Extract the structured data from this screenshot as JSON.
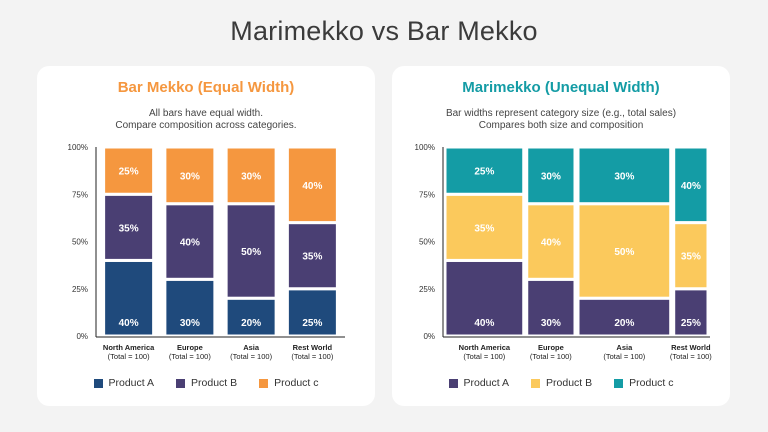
{
  "page": {
    "title": "Marimekko vs Bar Mekko"
  },
  "charts": {
    "left": {
      "heading": "Bar Mekko (Equal Width)",
      "heading_color": "#f5973f",
      "subtitle_line1": "All bars have equal width.",
      "subtitle_line2": "Compare composition across categories.",
      "legend": [
        "Product A",
        "Product B",
        "Product c"
      ]
    },
    "right": {
      "heading": "Marimekko (Unequal Width)",
      "heading_color": "#149ca5",
      "subtitle_line1": "Bar widths represent category size (e.g., total sales)",
      "subtitle_line2": "Compares both size and composition",
      "legend": [
        "Product A",
        "Product B",
        "Product c"
      ]
    }
  },
  "chart_data": [
    {
      "type": "bar",
      "stacked": true,
      "title": "Bar Mekko (Equal Width)",
      "categories": [
        "North America",
        "Europe",
        "Asia",
        "Rest World"
      ],
      "category_notes": [
        "(Total = 100)",
        "(Total = 100)",
        "(Total = 100)",
        "(Total = 100)"
      ],
      "yticks": [
        "0%",
        "25%",
        "50%",
        "75%",
        "100%"
      ],
      "ylim": [
        0,
        100
      ],
      "series": [
        {
          "name": "Product A",
          "color": "#1f4a7c",
          "values": [
            40,
            30,
            20,
            25
          ]
        },
        {
          "name": "Product B",
          "color": "#4a3f73",
          "values": [
            35,
            40,
            50,
            35
          ]
        },
        {
          "name": "Product c",
          "color": "#f5973f",
          "values": [
            25,
            30,
            30,
            40
          ]
        }
      ],
      "data_labels": [
        [
          "40%",
          "30%",
          "20%",
          "25%"
        ],
        [
          "35%",
          "40%",
          "50%",
          "35%"
        ],
        [
          "25%",
          "30%",
          "30%",
          "40%"
        ]
      ],
      "legend_position": "bottom",
      "grid": false
    },
    {
      "type": "marimekko",
      "title": "Marimekko (Unequal Width)",
      "categories": [
        "North America",
        "Europe",
        "Asia",
        "Rest World"
      ],
      "category_notes": [
        "(Total = 100)",
        "(Total = 100)",
        "(Total = 100)",
        "(Total = 100)"
      ],
      "widths": [
        0.31,
        0.19,
        0.365,
        0.135
      ],
      "yticks": [
        "0%",
        "25%",
        "50%",
        "75%",
        "100%"
      ],
      "ylim": [
        0,
        100
      ],
      "series": [
        {
          "name": "Product A",
          "color": "#4a3f73",
          "values": [
            40,
            30,
            20,
            25
          ]
        },
        {
          "name": "Product B",
          "color": "#fbc95c",
          "values": [
            35,
            40,
            50,
            35
          ]
        },
        {
          "name": "Product c",
          "color": "#149ca5",
          "values": [
            25,
            30,
            30,
            40
          ]
        }
      ],
      "data_labels": [
        [
          "40%",
          "30%",
          "20%",
          "25%"
        ],
        [
          "35%",
          "40%",
          "50%",
          "35%"
        ],
        [
          "25%",
          "30%",
          "30%",
          "40%"
        ]
      ],
      "legend_position": "bottom",
      "grid": false
    }
  ]
}
